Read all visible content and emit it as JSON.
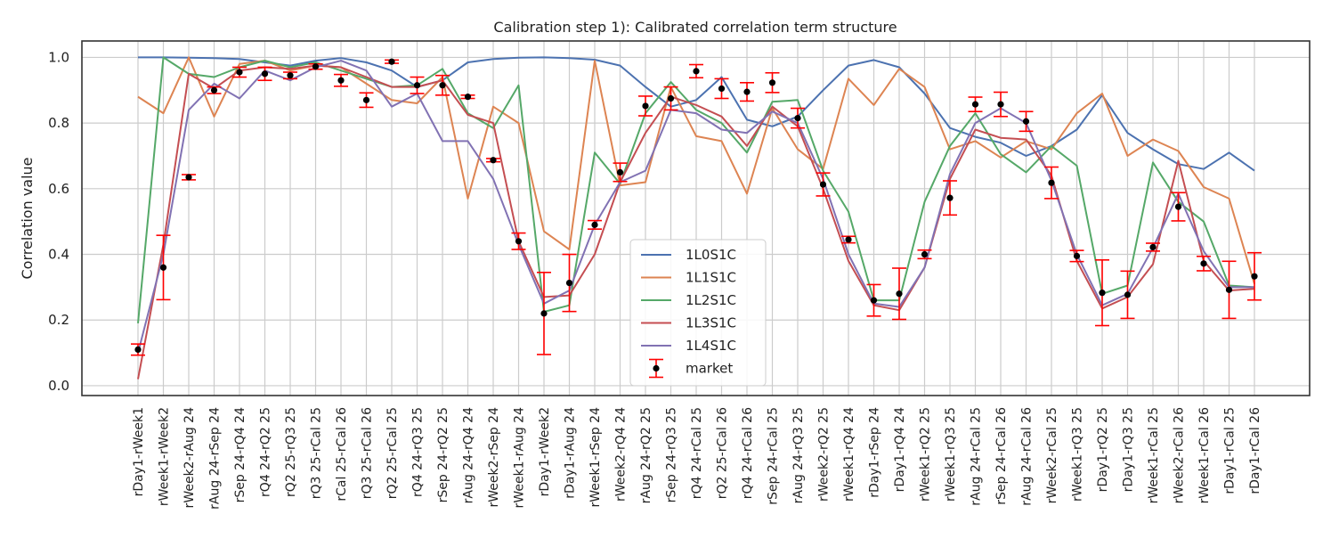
{
  "chart_data": {
    "type": "line",
    "title": "Calibration step 1): Calibrated correlation term structure",
    "xlabel": "",
    "ylabel": "Correlation value",
    "ylim": [
      -0.03,
      1.05
    ],
    "yticks": [
      0.0,
      0.2,
      0.4,
      0.6,
      0.8,
      1.0
    ],
    "ytick_labels": [
      "0.0",
      "0.2",
      "0.4",
      "0.6",
      "0.8",
      "1.0"
    ],
    "grid": true,
    "legend_position": "center",
    "categories": [
      "rDay1-rWeek1",
      "rWeek1-rWeek2",
      "rWeek2-rAug 24",
      "rAug 24-rSep 24",
      "rSep 24-rQ4 24",
      "rQ4 24-rQ2 25",
      "rQ2 25-rQ3 25",
      "rQ3 25-rCal 25",
      "rCal 25-rCal 26",
      "rQ3 25-rCal 26",
      "rQ2 25-rCal 25",
      "rQ4 24-rQ3 25",
      "rSep 24-rQ2 25",
      "rAug 24-rQ4 24",
      "rWeek2-rSep 24",
      "rWeek1-rAug 24",
      "rDay1-rWeek2",
      "rDay1-rAug 24",
      "rWeek1-rSep 24",
      "rWeek2-rQ4 24",
      "rAug 24-rQ2 25",
      "rSep 24-rQ3 25",
      "rQ4 24-rCal 25",
      "rQ2 25-rCal 26",
      "rQ4 24-rCal 26",
      "rSep 24-rCal 25",
      "rAug 24-rQ3 25",
      "rWeek2-rQ2 25",
      "rWeek1-rQ4 24",
      "rDay1-rSep 24",
      "rDay1-rQ4 24",
      "rWeek1-rQ2 25",
      "rWeek1-rQ3 25",
      "rAug 24-rCal 25",
      "rSep 24-rCal 26",
      "rAug 24-rCal 26",
      "rWeek2-rCal 25",
      "rWeek1-rQ3 25",
      "rDay1-rQ2 25",
      "rDay1-rQ3 25",
      "rWeek1-rCal 25",
      "rWeek2-rCal 26",
      "rWeek1-rCal 26",
      "rDay1-rCal 25",
      "rDay1-rCal 26"
    ],
    "series": [
      {
        "name": "1L0S1C",
        "color": "#4c72b0",
        "values": [
          1.0,
          1.0,
          0.999,
          0.998,
          0.995,
          0.985,
          0.975,
          0.99,
          0.998,
          0.985,
          0.96,
          0.91,
          0.93,
          0.985,
          0.995,
          0.999,
          1.0,
          0.998,
          0.993,
          0.975,
          0.91,
          0.85,
          0.87,
          0.94,
          0.81,
          0.79,
          0.82,
          0.9,
          0.975,
          0.992,
          0.97,
          0.89,
          0.785,
          0.758,
          0.74,
          0.7,
          0.73,
          0.78,
          0.885,
          0.77,
          0.72,
          0.675,
          0.66,
          0.71,
          0.655
        ]
      },
      {
        "name": "1L1S1C",
        "color": "#dd8452",
        "values": [
          0.88,
          0.83,
          1.0,
          0.82,
          0.98,
          0.99,
          0.96,
          0.975,
          0.97,
          0.92,
          0.87,
          0.86,
          0.94,
          0.57,
          0.85,
          0.8,
          0.47,
          0.415,
          0.99,
          0.61,
          0.62,
          0.91,
          0.76,
          0.745,
          0.585,
          0.845,
          0.72,
          0.66,
          0.935,
          0.855,
          0.965,
          0.91,
          0.72,
          0.745,
          0.695,
          0.745,
          0.72,
          0.83,
          0.89,
          0.7,
          0.75,
          0.715,
          0.605,
          0.57,
          0.31
        ]
      },
      {
        "name": "1L2S1C",
        "color": "#55a868",
        "values": [
          0.19,
          1.0,
          0.95,
          0.94,
          0.97,
          0.99,
          0.97,
          0.985,
          0.96,
          0.935,
          0.91,
          0.915,
          0.965,
          0.83,
          0.785,
          0.915,
          0.225,
          0.245,
          0.71,
          0.615,
          0.83,
          0.925,
          0.84,
          0.8,
          0.71,
          0.865,
          0.87,
          0.655,
          0.53,
          0.26,
          0.26,
          0.56,
          0.73,
          0.83,
          0.705,
          0.65,
          0.73,
          0.67,
          0.28,
          0.305,
          0.68,
          0.56,
          0.5,
          0.305,
          0.3
        ]
      },
      {
        "name": "1L3S1C",
        "color": "#c44e52",
        "values": [
          0.02,
          0.43,
          0.95,
          0.905,
          0.96,
          0.97,
          0.965,
          0.975,
          0.97,
          0.94,
          0.91,
          0.91,
          0.93,
          0.825,
          0.8,
          0.44,
          0.27,
          0.275,
          0.4,
          0.62,
          0.77,
          0.88,
          0.855,
          0.82,
          0.73,
          0.85,
          0.79,
          0.6,
          0.38,
          0.245,
          0.23,
          0.36,
          0.63,
          0.78,
          0.755,
          0.75,
          0.64,
          0.38,
          0.235,
          0.27,
          0.37,
          0.685,
          0.38,
          0.29,
          0.295
        ]
      },
      {
        "name": "1L4S1C",
        "color": "#8172b3",
        "values": [
          0.1,
          0.4,
          0.84,
          0.92,
          0.875,
          0.96,
          0.93,
          0.97,
          0.99,
          0.96,
          0.85,
          0.89,
          0.745,
          0.745,
          0.63,
          0.43,
          0.25,
          0.29,
          0.49,
          0.62,
          0.655,
          0.84,
          0.83,
          0.78,
          0.77,
          0.835,
          0.8,
          0.63,
          0.4,
          0.25,
          0.24,
          0.36,
          0.645,
          0.8,
          0.845,
          0.8,
          0.625,
          0.4,
          0.245,
          0.28,
          0.42,
          0.585,
          0.41,
          0.3,
          0.3
        ]
      }
    ],
    "market": {
      "name": "market",
      "marker_color": "#000000",
      "errorbar_color": "#ff0000",
      "values": [
        0.11,
        0.36,
        0.635,
        0.9,
        0.955,
        0.95,
        0.945,
        0.972,
        0.93,
        0.87,
        0.987,
        0.915,
        0.915,
        0.88,
        0.687,
        0.44,
        0.22,
        0.313,
        0.49,
        0.65,
        0.852,
        0.875,
        0.958,
        0.905,
        0.895,
        0.923,
        0.815,
        0.613,
        0.445,
        0.26,
        0.28,
        0.4,
        0.572,
        0.857,
        0.857,
        0.805,
        0.618,
        0.395,
        0.283,
        0.277,
        0.422,
        0.545,
        0.372,
        0.292,
        0.333
      ],
      "err": [
        0.017,
        0.098,
        0.008,
        0.01,
        0.015,
        0.02,
        0.01,
        0.008,
        0.018,
        0.022,
        0.005,
        0.025,
        0.03,
        0.005,
        0.005,
        0.025,
        0.125,
        0.087,
        0.013,
        0.028,
        0.03,
        0.035,
        0.02,
        0.03,
        0.028,
        0.03,
        0.03,
        0.035,
        0.01,
        0.048,
        0.078,
        0.013,
        0.052,
        0.022,
        0.037,
        0.03,
        0.048,
        0.017,
        0.1,
        0.072,
        0.012,
        0.043,
        0.022,
        0.087,
        0.072
      ]
    }
  }
}
